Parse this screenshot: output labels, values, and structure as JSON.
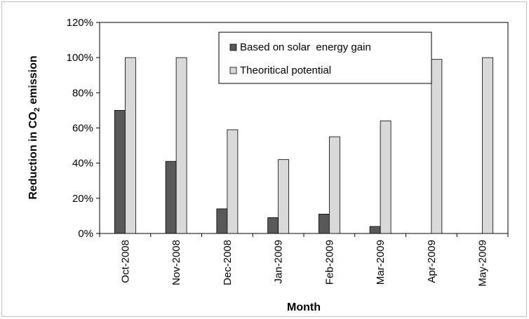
{
  "chart_data": {
    "type": "bar",
    "categories": [
      "Oct-2008",
      "Nov-2008",
      "Dec-2008",
      "Jan-2009",
      "Feb-2009",
      "Mar-2009",
      "Apr-2009",
      "May-2009"
    ],
    "series": [
      {
        "name": "Based on solar  energy gain",
        "color": "#595959",
        "values": [
          70,
          41,
          14,
          9,
          11,
          4,
          0,
          0
        ]
      },
      {
        "name": "Theoritical potential",
        "color": "#d9d9d9",
        "values": [
          100,
          100,
          59,
          42,
          55,
          64,
          99,
          100
        ]
      }
    ],
    "ylim": [
      0,
      120
    ],
    "yticks": [
      "0%",
      "20%",
      "40%",
      "60%",
      "80%",
      "100%",
      "120%"
    ],
    "xlabel": "Month",
    "ylabel": {
      "main": "Reduction  in CO",
      "sub": "2",
      "tail": " emission"
    },
    "legend_position": "top-center",
    "grid": false
  }
}
